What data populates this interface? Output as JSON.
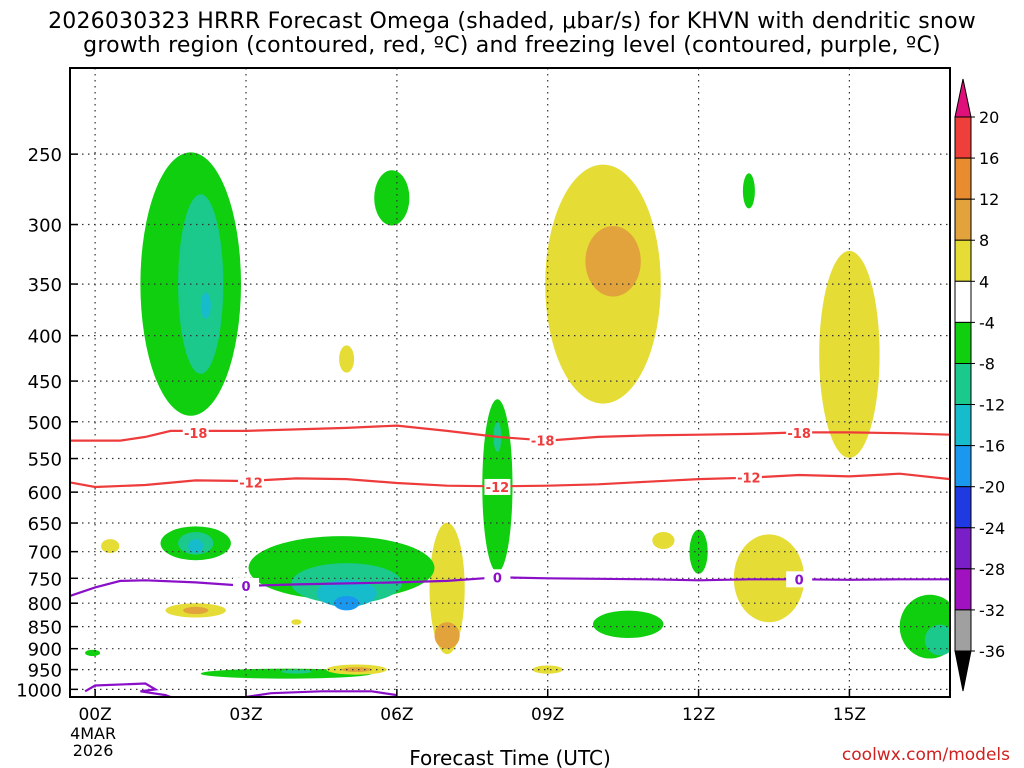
{
  "chart_data": {
    "type": "heatmap",
    "title_line1": "2026030323 HRRR Forecast Omega (shaded, μbar/s) for KHVN with dendritic snow",
    "title_line2": "growth region (contoured, red, ºC) and freezing level (contoured, purple, ºC)",
    "xlabel": "Forecast Time (UTC)",
    "ylabel": "",
    "x_ticks": [
      {
        "hour": 0,
        "label": "00Z",
        "sub1": "4MAR",
        "sub2": "2026"
      },
      {
        "hour": 3,
        "label": "03Z"
      },
      {
        "hour": 6,
        "label": "06Z"
      },
      {
        "hour": 9,
        "label": "09Z"
      },
      {
        "hour": 12,
        "label": "12Z"
      },
      {
        "hour": 15,
        "label": "15Z"
      }
    ],
    "xlim": [
      -0.5,
      17
    ],
    "y_ticks": [
      250,
      300,
      350,
      400,
      450,
      500,
      550,
      600,
      650,
      700,
      750,
      800,
      850,
      900,
      950,
      1000
    ],
    "ylim_hpa": [
      1020,
      200
    ],
    "colorbar": {
      "label_values": [
        20,
        16,
        12,
        8,
        4,
        -4,
        -8,
        -12,
        -16,
        -20,
        -24,
        -28,
        -32,
        -36
      ],
      "segments": [
        {
          "from": 16,
          "to": 20,
          "color": "#ee3f3b"
        },
        {
          "from": 12,
          "to": 16,
          "color": "#e98b2f"
        },
        {
          "from": 8,
          "to": 12,
          "color": "#e2a23c"
        },
        {
          "from": 4,
          "to": 8,
          "color": "#e5dc35"
        },
        {
          "from": -4,
          "to": 4,
          "color": "#ffffff"
        },
        {
          "from": -8,
          "to": -4,
          "color": "#0fcf0f"
        },
        {
          "from": -12,
          "to": -8,
          "color": "#1bc98c"
        },
        {
          "from": -16,
          "to": -12,
          "color": "#16bccc"
        },
        {
          "from": -20,
          "to": -16,
          "color": "#1a98f0"
        },
        {
          "from": -24,
          "to": -20,
          "color": "#1f3ae0"
        },
        {
          "from": -28,
          "to": -24,
          "color": "#7a1ec8"
        },
        {
          "from": -32,
          "to": -28,
          "color": "#a012c0"
        },
        {
          "from": -36,
          "to": -32,
          "color": "#a0a0a0"
        }
      ],
      "top_arrow_color": "#e0107a",
      "bottom_arrow_color": "#000000"
    },
    "omega_blobs": [
      {
        "hour": 1.9,
        "p": 350,
        "rh": 1.0,
        "rp": 230,
        "v": -6
      },
      {
        "hour": 2.1,
        "p": 350,
        "rh": 0.45,
        "rp": 160,
        "v": -10
      },
      {
        "hour": 2.2,
        "p": 370,
        "rh": 0.1,
        "rp": 25,
        "v": -14
      },
      {
        "hour": 5.9,
        "p": 280,
        "rh": 0.35,
        "rp": 40,
        "v": -6
      },
      {
        "hour": 8.0,
        "p": 590,
        "rh": 0.3,
        "rp": 260,
        "v": -6
      },
      {
        "hour": 8.0,
        "p": 520,
        "rh": 0.08,
        "rp": 40,
        "v": -10
      },
      {
        "hour": 10.1,
        "p": 350,
        "rh": 1.15,
        "rp": 210,
        "v": 6
      },
      {
        "hour": 10.3,
        "p": 330,
        "rh": 0.55,
        "rp": 60,
        "v": 10
      },
      {
        "hour": 15.0,
        "p": 420,
        "rh": 0.6,
        "rp": 220,
        "v": 6
      },
      {
        "hour": 13.0,
        "p": 275,
        "rh": 0.12,
        "rp": 25,
        "v": -6
      },
      {
        "hour": 5.0,
        "p": 425,
        "rh": 0.15,
        "rp": 30,
        "v": 6
      },
      {
        "hour": 7.0,
        "p": 770,
        "rh": 0.35,
        "rp": 260,
        "v": 6
      },
      {
        "hour": 7.0,
        "p": 870,
        "rh": 0.25,
        "rp": 60,
        "v": 10
      },
      {
        "hour": 2.0,
        "p": 685,
        "rh": 0.7,
        "rp": 60,
        "v": -6
      },
      {
        "hour": 2.0,
        "p": 685,
        "rh": 0.35,
        "rp": 40,
        "v": -10
      },
      {
        "hour": 2.0,
        "p": 690,
        "rh": 0.15,
        "rp": 25,
        "v": -14
      },
      {
        "hour": 4.9,
        "p": 730,
        "rh": 1.85,
        "rp": 120,
        "v": -6
      },
      {
        "hour": 5.0,
        "p": 760,
        "rh": 1.1,
        "rp": 80,
        "v": -10
      },
      {
        "hour": 5.0,
        "p": 780,
        "rh": 0.6,
        "rp": 55,
        "v": -14
      },
      {
        "hour": 5.0,
        "p": 800,
        "rh": 0.25,
        "rp": 30,
        "v": -20
      },
      {
        "hour": 2.0,
        "p": 815,
        "rh": 0.6,
        "rp": 30,
        "v": 6
      },
      {
        "hour": 2.0,
        "p": 815,
        "rh": 0.25,
        "rp": 15,
        "v": 10
      },
      {
        "hour": 3.8,
        "p": 960,
        "rh": 1.7,
        "rp": 25,
        "v": -6
      },
      {
        "hour": 4.0,
        "p": 955,
        "rh": 0.3,
        "rp": 10,
        "v": -10
      },
      {
        "hour": 5.2,
        "p": 950,
        "rh": 0.6,
        "rp": 25,
        "v": 6
      },
      {
        "hour": 5.2,
        "p": 950,
        "rh": 0.3,
        "rp": 12,
        "v": 10
      },
      {
        "hour": 9.0,
        "p": 950,
        "rh": 0.3,
        "rp": 20,
        "v": 6
      },
      {
        "hour": 10.6,
        "p": 845,
        "rh": 0.7,
        "rp": 60,
        "v": -6
      },
      {
        "hour": 12.0,
        "p": 700,
        "rh": 0.18,
        "rp": 80,
        "v": -6
      },
      {
        "hour": 13.4,
        "p": 750,
        "rh": 0.7,
        "rp": 170,
        "v": 6
      },
      {
        "hour": 16.6,
        "p": 850,
        "rh": 0.6,
        "rp": 140,
        "v": -6
      },
      {
        "hour": 16.8,
        "p": 880,
        "rh": 0.3,
        "rp": 70,
        "v": -10
      },
      {
        "hour": 11.3,
        "p": 680,
        "rh": 0.22,
        "rp": 30,
        "v": 6
      },
      {
        "hour": 0.3,
        "p": 690,
        "rh": 0.18,
        "rp": 25,
        "v": 6
      },
      {
        "hour": 4.0,
        "p": 840,
        "rh": 0.1,
        "rp": 12,
        "v": 6
      },
      {
        "hour": -0.05,
        "p": 910,
        "rh": 0.15,
        "rp": 15,
        "v": -6
      }
    ],
    "contours": [
      {
        "name": "dgz -18C",
        "color": "#ee3b3b",
        "label": "-18",
        "label_positions": [
          {
            "hour": 2.0,
            "p": 515
          },
          {
            "hour": 8.9,
            "p": 525
          },
          {
            "hour": 14.0,
            "p": 515
          }
        ],
        "points": [
          [
            -0.5,
            525
          ],
          [
            0.5,
            525
          ],
          [
            1.0,
            520
          ],
          [
            1.5,
            512
          ],
          [
            2.0,
            512
          ],
          [
            3.0,
            512
          ],
          [
            4.0,
            510
          ],
          [
            5.0,
            508
          ],
          [
            6.0,
            505
          ],
          [
            7.0,
            512
          ],
          [
            8.0,
            520
          ],
          [
            9.0,
            525
          ],
          [
            10.0,
            520
          ],
          [
            11.0,
            518
          ],
          [
            12.0,
            517
          ],
          [
            13.0,
            516
          ],
          [
            14.0,
            514
          ],
          [
            15.0,
            514
          ],
          [
            16.0,
            515
          ],
          [
            17.0,
            517
          ]
        ]
      },
      {
        "name": "dgz -12C",
        "color": "#ee3b3b",
        "label": "-12",
        "label_positions": [
          {
            "hour": 3.1,
            "p": 585
          },
          {
            "hour": 8.0,
            "p": 592
          },
          {
            "hour": 13.0,
            "p": 578
          }
        ],
        "points": [
          [
            -0.5,
            585
          ],
          [
            0.0,
            592
          ],
          [
            1.0,
            589
          ],
          [
            2.0,
            582
          ],
          [
            3.0,
            583
          ],
          [
            4.0,
            579
          ],
          [
            5.0,
            580
          ],
          [
            6.0,
            586
          ],
          [
            7.0,
            590
          ],
          [
            8.0,
            591
          ],
          [
            9.0,
            590
          ],
          [
            10.0,
            588
          ],
          [
            11.0,
            584
          ],
          [
            12.0,
            580
          ],
          [
            13.0,
            578
          ],
          [
            14.0,
            574
          ],
          [
            15.0,
            576
          ],
          [
            16.0,
            572
          ],
          [
            17.0,
            580
          ]
        ]
      },
      {
        "name": "freezing level 0C",
        "color": "#8a10c8",
        "label": "0",
        "label_positions": [
          {
            "hour": 3.0,
            "p": 765
          },
          {
            "hour": 8.0,
            "p": 748
          },
          {
            "hour": 14.0,
            "p": 752
          }
        ],
        "points": [
          [
            -0.5,
            785
          ],
          [
            0.0,
            768
          ],
          [
            0.5,
            755
          ],
          [
            1.0,
            754
          ],
          [
            2.0,
            758
          ],
          [
            3.0,
            765
          ],
          [
            4.0,
            762
          ],
          [
            5.0,
            760
          ],
          [
            6.0,
            758
          ],
          [
            7.0,
            755
          ],
          [
            8.0,
            748
          ],
          [
            9.0,
            750
          ],
          [
            10.0,
            751
          ],
          [
            11.0,
            752
          ],
          [
            12.0,
            754
          ],
          [
            13.0,
            752
          ],
          [
            14.0,
            752
          ],
          [
            15.0,
            753
          ],
          [
            16.0,
            752
          ],
          [
            17.0,
            752
          ]
        ]
      },
      {
        "name": "surface 0C",
        "color": "#8a10c8",
        "label": "",
        "label_positions": [],
        "points": [
          [
            -0.2,
            1005
          ],
          [
            0.0,
            990
          ],
          [
            1.0,
            985
          ],
          [
            1.2,
            1000
          ],
          [
            0.9,
            1005
          ],
          [
            1.4,
            1015
          ],
          [
            1.5,
            1020
          ]
        ]
      },
      {
        "name": "surface 0C b",
        "color": "#8a10c8",
        "label": "",
        "label_positions": [],
        "points": [
          [
            3.0,
            1020
          ],
          [
            3.5,
            1010
          ],
          [
            4.5,
            1005
          ],
          [
            5.5,
            1005
          ],
          [
            6.0,
            1015
          ]
        ]
      }
    ],
    "ground_color": "#a0522d"
  },
  "credit": "coolwx.com/models"
}
